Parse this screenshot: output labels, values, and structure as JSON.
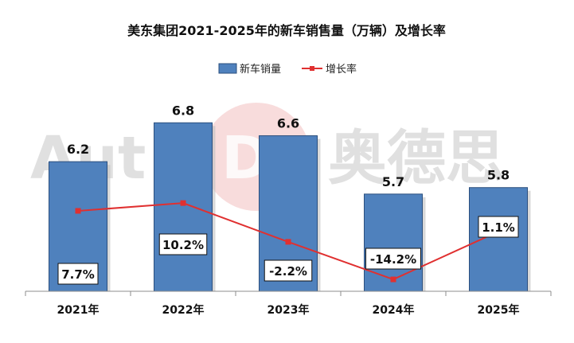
{
  "chart_data": {
    "type": "bar",
    "title": "美东集团2021-2025年的新车销售量（万辆）及增长率",
    "categories": [
      "2021年",
      "2022年",
      "2023年",
      "2024年",
      "2025年"
    ],
    "series": [
      {
        "name": "新车销量",
        "type": "bar",
        "values": [
          6.2,
          6.8,
          6.6,
          5.7,
          5.8
        ],
        "labels": [
          "6.2",
          "6.8",
          "6.6",
          "5.7",
          "5.8"
        ],
        "color": "#4f81bd"
      },
      {
        "name": "增长率",
        "type": "line",
        "values": [
          7.7,
          10.2,
          -2.2,
          -14.2,
          1.1
        ],
        "labels": [
          "7.7%",
          "10.2%",
          "-2.2%",
          "-14.2%",
          "1.1%"
        ],
        "color": "#e03030"
      }
    ],
    "ylim": [
      4.2,
      7.0
    ],
    "y2lim": [
      -18,
      40
    ],
    "grid": false,
    "legend": "top-center"
  },
  "watermark": {
    "left": "Aut",
    "middle": "D",
    "right": "奥德思"
  }
}
